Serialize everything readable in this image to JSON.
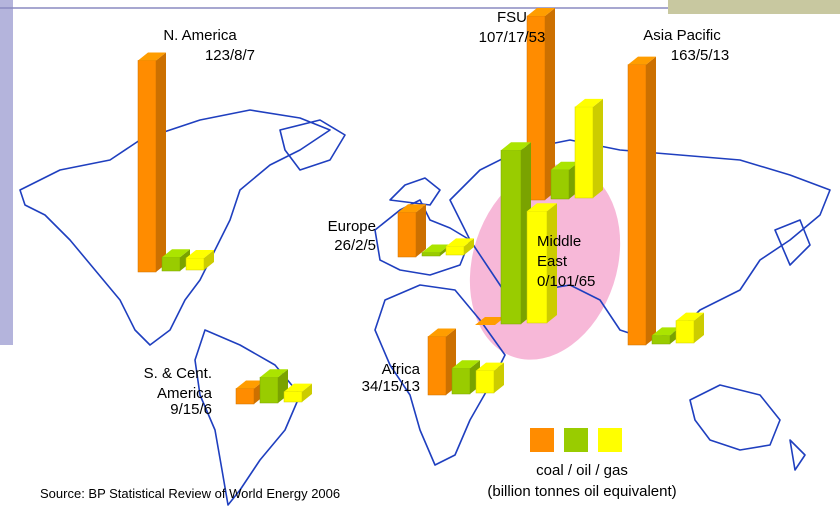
{
  "regions": [
    {
      "name_lines": [
        "N. America"
      ],
      "value_label": "123/8/7",
      "values": [
        123,
        8,
        7
      ]
    },
    {
      "name_lines": [
        "S. & Cent.",
        "America"
      ],
      "value_label": "9/15/6",
      "values": [
        9,
        15,
        6
      ]
    },
    {
      "name_lines": [
        "Europe"
      ],
      "value_label": "26/2/5",
      "values": [
        26,
        2,
        5
      ]
    },
    {
      "name_lines": [
        "Africa"
      ],
      "value_label": "34/15/13",
      "values": [
        34,
        15,
        13
      ]
    },
    {
      "name_lines": [
        "FSU"
      ],
      "value_label": "107/17/53",
      "values": [
        107,
        17,
        53
      ]
    },
    {
      "name_lines": [
        "Middle",
        "East"
      ],
      "value_label": "0/101/65",
      "values": [
        0,
        101,
        65
      ]
    },
    {
      "name_lines": [
        "Asia Pacific"
      ],
      "value_label": "163/5/13",
      "values": [
        163,
        5,
        13
      ]
    }
  ],
  "colors": [
    "#ff8c00",
    "#99cc00",
    "#ffff00"
  ],
  "legend": {
    "label": "coal / oil / gas",
    "units": "(billion tonnes oil equivalent)"
  },
  "source": "Source: BP Statistical Review of World Energy 2006"
}
